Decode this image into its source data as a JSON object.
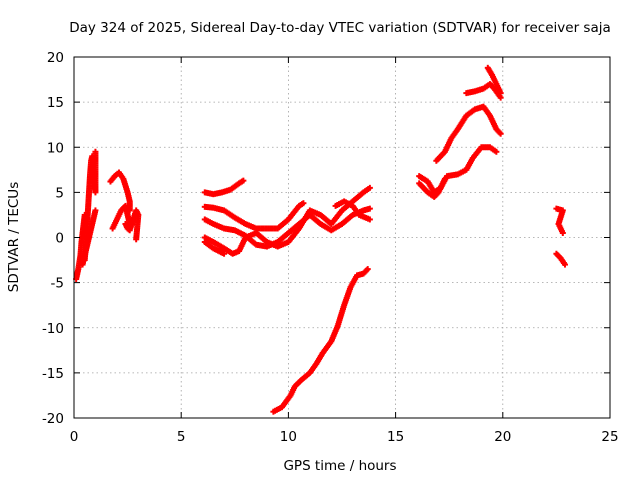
{
  "chart_data": {
    "type": "scatter",
    "title": "Day 324 of 2025, Sidereal Day-to-day VTEC variation (SDTVAR) for receiver saja",
    "xlabel": "GPS time / hours",
    "ylabel": "SDTVAR / TECUs",
    "xlim": [
      0,
      25
    ],
    "ylim": [
      -20,
      20
    ],
    "xticks": [
      0,
      5,
      10,
      15,
      20,
      25
    ],
    "yticks": [
      -20,
      -15,
      -10,
      -5,
      0,
      5,
      10,
      15,
      20
    ],
    "grid": true,
    "marker": "plus",
    "color": "#ff0000",
    "segments": [
      {
        "name": "arc-1",
        "points": [
          [
            0.1,
            -4.6
          ],
          [
            0.2,
            -3.5
          ],
          [
            0.3,
            -2.0
          ],
          [
            0.35,
            -0.5
          ],
          [
            0.4,
            0.5
          ],
          [
            0.45,
            1.5
          ],
          [
            0.5,
            2.5
          ]
        ]
      },
      {
        "name": "arc-2",
        "points": [
          [
            0.4,
            -3.0
          ],
          [
            0.5,
            -2.0
          ],
          [
            0.6,
            -1.0
          ],
          [
            0.7,
            0.0
          ],
          [
            0.8,
            1.0
          ],
          [
            0.9,
            2.0
          ],
          [
            1.0,
            3.0
          ]
        ]
      },
      {
        "name": "arc-3",
        "points": [
          [
            0.5,
            -2.5
          ],
          [
            0.55,
            -1.0
          ],
          [
            0.6,
            1.0
          ],
          [
            0.65,
            3.0
          ],
          [
            0.7,
            5.0
          ],
          [
            0.75,
            7.0
          ],
          [
            0.8,
            8.5
          ],
          [
            0.85,
            9.0
          ],
          [
            0.9,
            8.0
          ],
          [
            0.95,
            6.0
          ],
          [
            1.0,
            5.0
          ],
          [
            1.0,
            9.5
          ]
        ]
      },
      {
        "name": "arc-4",
        "points": [
          [
            1.7,
            6.2
          ],
          [
            1.9,
            6.8
          ],
          [
            2.1,
            7.2
          ],
          [
            2.3,
            6.5
          ],
          [
            2.5,
            5.0
          ],
          [
            2.6,
            4.0
          ],
          [
            2.6,
            3.0
          ]
        ]
      },
      {
        "name": "arc-5",
        "points": [
          [
            1.8,
            1.0
          ],
          [
            2.0,
            2.0
          ],
          [
            2.2,
            3.0
          ],
          [
            2.4,
            3.5
          ],
          [
            2.5,
            2.5
          ],
          [
            2.6,
            1.5
          ]
        ]
      },
      {
        "name": "arc-6",
        "points": [
          [
            2.4,
            1.5
          ],
          [
            2.5,
            1.0
          ],
          [
            2.6,
            0.8
          ],
          [
            2.9,
            3.0
          ],
          [
            3.0,
            2.5
          ],
          [
            2.9,
            -0.2
          ]
        ]
      },
      {
        "name": "arc-7",
        "points": [
          [
            6.1,
            5.0
          ],
          [
            6.5,
            4.8
          ],
          [
            6.9,
            5.0
          ],
          [
            7.3,
            5.3
          ],
          [
            7.7,
            6.0
          ],
          [
            7.9,
            6.3
          ]
        ]
      },
      {
        "name": "arc-8",
        "points": [
          [
            6.1,
            3.4
          ],
          [
            6.5,
            3.3
          ],
          [
            7.0,
            3.0
          ],
          [
            7.5,
            2.2
          ],
          [
            8.0,
            1.5
          ],
          [
            8.5,
            1.0
          ],
          [
            9.0,
            1.0
          ],
          [
            9.5,
            1.0
          ],
          [
            10.0,
            2.0
          ],
          [
            10.5,
            3.5
          ],
          [
            10.7,
            3.8
          ]
        ]
      },
      {
        "name": "arc-9",
        "points": [
          [
            6.1,
            2.0
          ],
          [
            6.5,
            1.5
          ],
          [
            7.0,
            1.0
          ],
          [
            7.5,
            0.8
          ],
          [
            8.0,
            0.2
          ],
          [
            8.5,
            -0.8
          ],
          [
            9.0,
            -1.0
          ],
          [
            9.5,
            -0.5
          ],
          [
            10.0,
            0.5
          ],
          [
            10.5,
            1.5
          ],
          [
            11.0,
            2.5
          ],
          [
            11.5,
            1.5
          ],
          [
            12.0,
            0.8
          ],
          [
            12.5,
            1.5
          ],
          [
            13.0,
            2.5
          ],
          [
            13.5,
            3.0
          ],
          [
            13.8,
            3.2
          ]
        ]
      },
      {
        "name": "arc-10",
        "points": [
          [
            6.1,
            0.0
          ],
          [
            6.5,
            -0.5
          ],
          [
            7.0,
            -1.2
          ],
          [
            7.4,
            -1.8
          ],
          [
            7.7,
            -1.5
          ],
          [
            8.0,
            0.0
          ],
          [
            8.5,
            0.5
          ],
          [
            9.0,
            -0.5
          ],
          [
            9.5,
            -1.0
          ],
          [
            10.0,
            -0.5
          ],
          [
            10.5,
            1.0
          ],
          [
            11.0,
            3.0
          ],
          [
            11.5,
            2.5
          ],
          [
            12.0,
            1.5
          ],
          [
            12.5,
            3.0
          ],
          [
            13.0,
            4.0
          ],
          [
            13.5,
            5.0
          ],
          [
            13.8,
            5.5
          ]
        ]
      },
      {
        "name": "arc-11",
        "points": [
          [
            6.1,
            -0.5
          ],
          [
            6.5,
            -1.2
          ],
          [
            7.0,
            -1.8
          ]
        ]
      },
      {
        "name": "arc-12",
        "points": [
          [
            12.2,
            3.5
          ],
          [
            12.6,
            4.0
          ],
          [
            13.0,
            3.5
          ],
          [
            13.3,
            2.5
          ],
          [
            13.8,
            2.0
          ]
        ]
      },
      {
        "name": "arc-13",
        "points": [
          [
            9.3,
            -19.3
          ],
          [
            9.7,
            -18.8
          ],
          [
            10.1,
            -17.5
          ],
          [
            10.3,
            -16.5
          ],
          [
            10.6,
            -15.8
          ],
          [
            11.0,
            -15.0
          ],
          [
            11.3,
            -14.0
          ],
          [
            11.6,
            -12.8
          ],
          [
            12.0,
            -11.5
          ],
          [
            12.3,
            -9.8
          ],
          [
            12.6,
            -7.5
          ],
          [
            12.9,
            -5.5
          ],
          [
            13.2,
            -4.2
          ],
          [
            13.5,
            -4.0
          ],
          [
            13.7,
            -3.5
          ]
        ]
      },
      {
        "name": "arc-14",
        "points": [
          [
            16.1,
            6.8
          ],
          [
            16.5,
            6.2
          ],
          [
            16.8,
            5.0
          ],
          [
            17.1,
            5.5
          ],
          [
            17.4,
            6.8
          ],
          [
            17.9,
            7.0
          ],
          [
            18.3,
            7.5
          ],
          [
            18.6,
            8.8
          ],
          [
            19.0,
            10.0
          ],
          [
            19.4,
            10.0
          ],
          [
            19.7,
            9.5
          ]
        ]
      },
      {
        "name": "arc-15",
        "points": [
          [
            16.1,
            6.0
          ],
          [
            16.5,
            5.0
          ],
          [
            16.8,
            4.5
          ],
          [
            17.0,
            5.0
          ],
          [
            17.3,
            6.5
          ]
        ]
      },
      {
        "name": "arc-16",
        "points": [
          [
            16.9,
            8.5
          ],
          [
            17.3,
            9.5
          ],
          [
            17.6,
            11.0
          ],
          [
            17.9,
            12.0
          ],
          [
            18.3,
            13.5
          ],
          [
            18.7,
            14.2
          ],
          [
            19.1,
            14.5
          ],
          [
            19.4,
            13.5
          ],
          [
            19.7,
            12.0
          ],
          [
            19.9,
            11.5
          ]
        ]
      },
      {
        "name": "arc-17",
        "points": [
          [
            18.3,
            16.0
          ],
          [
            18.7,
            16.2
          ],
          [
            19.1,
            16.5
          ],
          [
            19.4,
            17.0
          ],
          [
            19.6,
            16.5
          ],
          [
            19.9,
            15.5
          ]
        ]
      },
      {
        "name": "arc-18",
        "points": [
          [
            19.3,
            18.8
          ],
          [
            19.5,
            18.0
          ],
          [
            19.7,
            17.0
          ],
          [
            19.9,
            16.0
          ]
        ]
      },
      {
        "name": "arc-19",
        "points": [
          [
            22.5,
            3.2
          ],
          [
            22.8,
            3.0
          ],
          [
            22.6,
            1.5
          ],
          [
            22.8,
            0.5
          ]
        ]
      },
      {
        "name": "arc-20",
        "points": [
          [
            22.5,
            -1.8
          ],
          [
            22.7,
            -2.3
          ],
          [
            22.9,
            -3.0
          ]
        ]
      }
    ]
  }
}
